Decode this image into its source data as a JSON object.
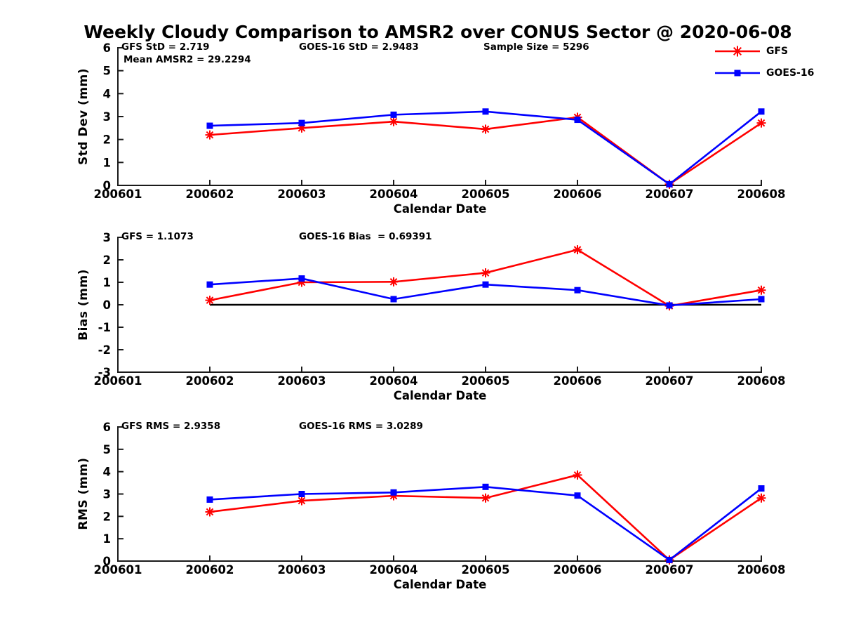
{
  "title": "Weekly Cloudy Comparison to AMSR2 over CONUS Sector @ 2020-06-08",
  "colors": {
    "gfs_red": "#ff0000",
    "goes_blue": "#0000ff",
    "axis": "#1a1a1a",
    "zero_line": "#000000",
    "text": "#000000"
  },
  "legend": {
    "items": [
      {
        "label": "GFS",
        "color": "#ff0000",
        "marker": "asterisk"
      },
      {
        "label": "GOES-16",
        "color": "#0000ff",
        "marker": "square"
      }
    ]
  },
  "chart_data": [
    {
      "type": "line",
      "panel": "std-dev",
      "ylabel": "Std Dev (mm)",
      "xlabel": "Calendar Date",
      "ylim": [
        0,
        6
      ],
      "yticks": [
        0,
        1,
        2,
        3,
        4,
        5,
        6
      ],
      "categories": [
        "200601",
        "200602",
        "200603",
        "200604",
        "200605",
        "200606",
        "200607",
        "200608"
      ],
      "data_start_category": "200602",
      "grid": false,
      "zero_line": false,
      "legend_position": "top-right-outside",
      "annotations": [
        {
          "text": "GFS StD = 2.719",
          "x_offset": 5,
          "row": 0
        },
        {
          "text": "Mean AMSR2 = 29.2294",
          "x_offset": 8,
          "row": 1
        },
        {
          "text": "GOES-16 StD = 2.9483",
          "x_offset": 258,
          "row": 0
        },
        {
          "text": "Sample Size = 5296",
          "x_offset": 521,
          "row": 0
        }
      ],
      "series": [
        {
          "name": "GFS",
          "color": "#ff0000",
          "marker": "asterisk",
          "values": [
            2.2,
            2.5,
            2.78,
            2.45,
            2.97,
            0.05,
            2.72
          ]
        },
        {
          "name": "GOES-16",
          "color": "#0000ff",
          "marker": "square",
          "values": [
            2.6,
            2.72,
            3.08,
            3.22,
            2.86,
            0.05,
            3.22
          ]
        }
      ]
    },
    {
      "type": "line",
      "panel": "bias",
      "ylabel": "Bias (mm)",
      "xlabel": "Calendar Date",
      "ylim": [
        -3,
        3
      ],
      "yticks": [
        3,
        2,
        1,
        0,
        -1,
        -2,
        -3
      ],
      "categories": [
        "200601",
        "200602",
        "200603",
        "200604",
        "200605",
        "200606",
        "200607",
        "200608"
      ],
      "data_start_category": "200602",
      "grid": false,
      "zero_line": true,
      "annotations": [
        {
          "text": "GFS = 1.1073",
          "x_offset": 5,
          "row": 0
        },
        {
          "text": "GOES-16 Bias  = 0.69391",
          "x_offset": 258,
          "row": 0
        }
      ],
      "series": [
        {
          "name": "GFS",
          "color": "#ff0000",
          "marker": "asterisk",
          "values": [
            0.2,
            1.0,
            1.02,
            1.42,
            2.45,
            -0.05,
            0.65
          ]
        },
        {
          "name": "GOES-16",
          "color": "#0000ff",
          "marker": "square",
          "values": [
            0.9,
            1.17,
            0.25,
            0.9,
            0.65,
            -0.03,
            0.25
          ]
        }
      ]
    },
    {
      "type": "line",
      "panel": "rms",
      "ylabel": "RMS (mm)",
      "xlabel": "Calendar Date",
      "ylim": [
        0,
        6
      ],
      "yticks": [
        0,
        1,
        2,
        3,
        4,
        5,
        6
      ],
      "categories": [
        "200601",
        "200602",
        "200603",
        "200604",
        "200605",
        "200606",
        "200607",
        "200608"
      ],
      "data_start_category": "200602",
      "grid": false,
      "zero_line": false,
      "annotations": [
        {
          "text": "GFS RMS = 2.9358",
          "x_offset": 5,
          "row": 0
        },
        {
          "text": "GOES-16 RMS = 3.0289",
          "x_offset": 258,
          "row": 0
        }
      ],
      "series": [
        {
          "name": "GFS",
          "color": "#ff0000",
          "marker": "asterisk",
          "values": [
            2.2,
            2.7,
            2.92,
            2.82,
            3.85,
            0.05,
            2.82
          ]
        },
        {
          "name": "GOES-16",
          "color": "#0000ff",
          "marker": "square",
          "values": [
            2.75,
            3.0,
            3.07,
            3.32,
            2.93,
            0.05,
            3.25
          ]
        }
      ]
    }
  ]
}
